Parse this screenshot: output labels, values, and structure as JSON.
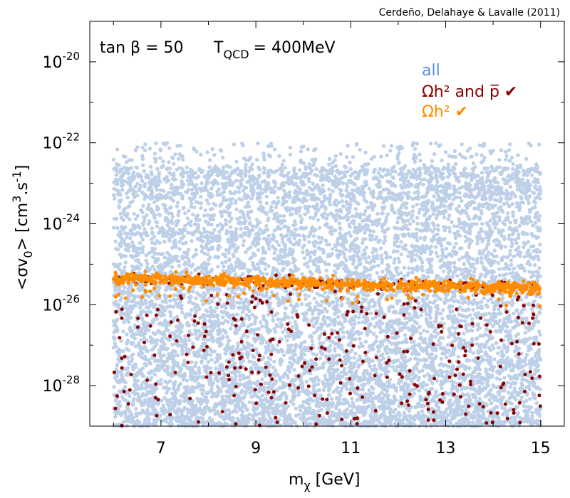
{
  "chart_data": {
    "type": "scatter",
    "credit": "Cerdeño, Delahaye & Lavalle (2011)",
    "annotation": {
      "tan_beta": "tan β = 50",
      "t_qcd_base": "T",
      "t_qcd_sub": "QCD",
      "t_qcd_value": "= 400MeV"
    },
    "xlabel": {
      "base": "m",
      "sub": "χ",
      "rest": " [GeV]"
    },
    "ylabel": {
      "pre": "<σv",
      "sub": "0",
      "mid": "> [cm",
      "sup1": "3",
      "mid2": ".s",
      "sup2": "-1",
      "post": "]"
    },
    "xlim": [
      5.5,
      15.5
    ],
    "ylim_log10": [
      -29.0,
      -19.0
    ],
    "x_ticks": [
      {
        "value": 7,
        "label": "7"
      },
      {
        "value": 9,
        "label": "9"
      },
      {
        "value": 11,
        "label": "11"
      },
      {
        "value": 13,
        "label": "13"
      },
      {
        "value": 15,
        "label": "15"
      }
    ],
    "y_ticks": [
      {
        "log10": -20,
        "base": "10",
        "exp": "-20"
      },
      {
        "log10": -22,
        "base": "10",
        "exp": "-22"
      },
      {
        "log10": -24,
        "base": "10",
        "exp": "-24"
      },
      {
        "log10": -26,
        "base": "10",
        "exp": "-26"
      },
      {
        "log10": -28,
        "base": "10",
        "exp": "-28"
      }
    ],
    "series": [
      {
        "name": "all",
        "color": "#bdd0e8",
        "x_range": [
          6.0,
          15.0
        ],
        "log10_y_range": [
          -29.0,
          -22.0
        ],
        "n_points": 9000
      },
      {
        "name": "Ωh² ✔",
        "color": "#ff8c00",
        "x_range": [
          6.0,
          15.0
        ],
        "log10_y_start": -25.35,
        "log10_y_end": -25.6,
        "log10_y_spread": 0.12,
        "n_points": 900
      },
      {
        "name": "Ωh² and p̅ ✔",
        "color": "#8b0000",
        "x_range": [
          6.0,
          15.0
        ],
        "log10_y_range": [
          -29.0,
          -25.4
        ],
        "n_points": 420
      }
    ],
    "legend": [
      {
        "label": "all",
        "color": "#5b8fd9"
      },
      {
        "label": "Ωh² and p̅ ✔",
        "color": "#8b0000"
      },
      {
        "label": "Ωh² ✔",
        "color": "#ff8c00"
      }
    ]
  }
}
